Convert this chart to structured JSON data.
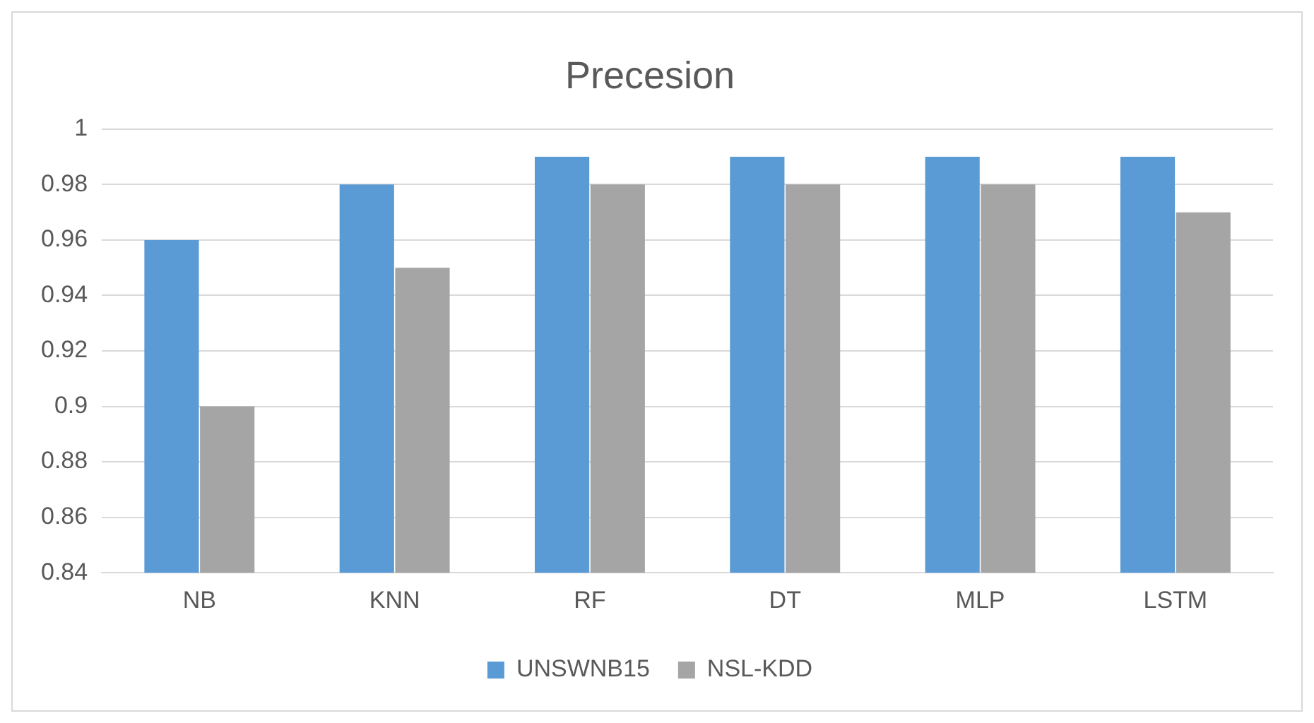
{
  "chart_data": {
    "type": "bar",
    "title": "Precesion",
    "categories": [
      "NB",
      "KNN",
      "RF",
      "DT",
      "MLP",
      "LSTM"
    ],
    "series": [
      {
        "name": "UNSWNB15",
        "color": "#5b9bd5",
        "values": [
          0.96,
          0.98,
          0.99,
          0.99,
          0.99,
          0.99
        ]
      },
      {
        "name": "NSL-KDD",
        "color": "#a5a5a5",
        "values": [
          0.9,
          0.95,
          0.98,
          0.98,
          0.98,
          0.97
        ]
      }
    ],
    "ylim": [
      0.84,
      1
    ],
    "yticks": [
      0.84,
      0.86,
      0.88,
      0.9,
      0.92,
      0.94,
      0.96,
      0.98,
      1
    ],
    "grid": "y",
    "legend": "bottom"
  }
}
